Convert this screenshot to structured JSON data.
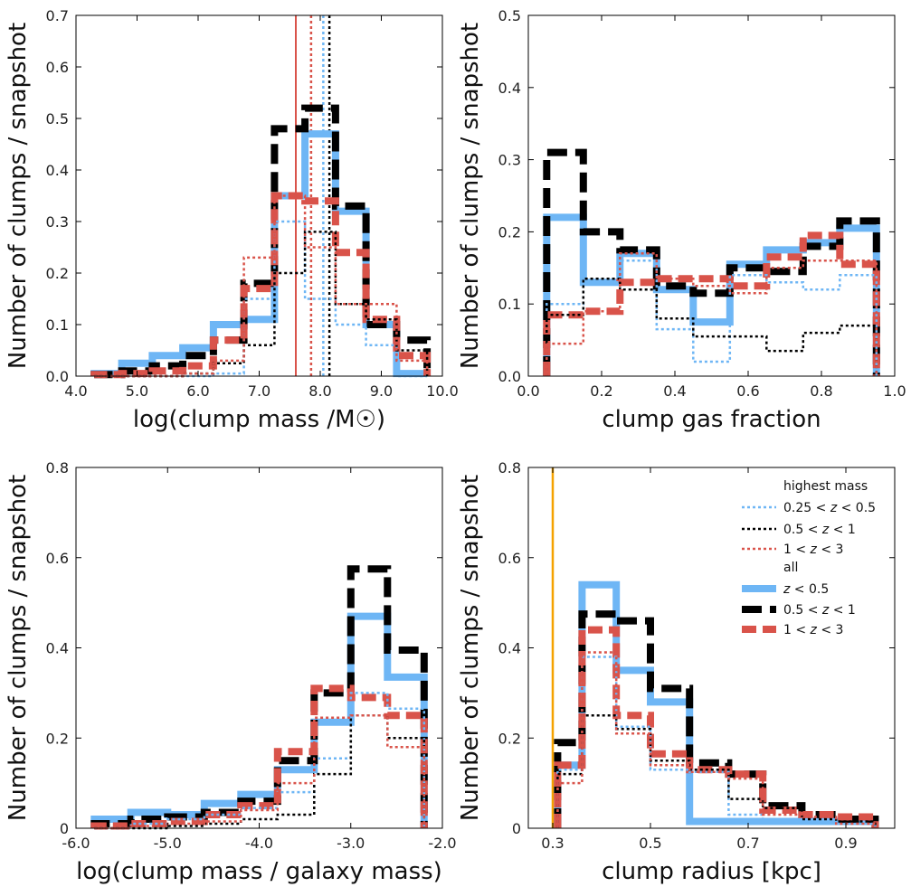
{
  "colors": {
    "blue": "#6EB6F5",
    "black": "#000000",
    "red": "#D9534A",
    "orange": "#F5A200"
  },
  "legend": {
    "header_highest": "highest mass",
    "header_all": "all",
    "entries": [
      {
        "style": "hm_blue",
        "label_pre": "0.25 < ",
        "label_var": "z",
        "label_post": " < 0.5"
      },
      {
        "style": "hm_black",
        "label_pre": "0.5 < ",
        "label_var": "z",
        "label_post": " < 1"
      },
      {
        "style": "hm_red",
        "label_pre": "1 < ",
        "label_var": "z",
        "label_post": " < 3"
      },
      {
        "style": "all_blue",
        "label_pre": "",
        "label_var": "z",
        "label_post": " < 0.5"
      },
      {
        "style": "all_black",
        "label_pre": "0.5 < ",
        "label_var": "z",
        "label_post": " < 1"
      },
      {
        "style": "all_red",
        "label_pre": "1 < ",
        "label_var": "z",
        "label_post": " < 3"
      }
    ]
  },
  "chart_data": [
    {
      "type": "histogram",
      "panel": "top-left",
      "xlabel": "log(clump mass /M☉)",
      "ylabel": "Number of clumps / snapshot",
      "xlim": [
        4.0,
        10.0
      ],
      "ylim": [
        0,
        0.7
      ],
      "xticks": [
        4,
        5,
        6,
        7,
        8,
        9,
        10
      ],
      "xtick_labels": [
        "4.0",
        "5.0",
        "6.0",
        "7.0",
        "8.0",
        "9.0",
        "10.0"
      ],
      "yticks": [
        0,
        0.1,
        0.2,
        0.3,
        0.4,
        0.5,
        0.6,
        0.7
      ],
      "ytick_labels": [
        "0.0",
        "0.1",
        "0.2",
        "0.3",
        "0.4",
        "0.5",
        "0.6",
        "0.7"
      ],
      "vlines": [
        {
          "x": 7.6,
          "style": "solid_red"
        },
        {
          "x": 7.85,
          "style": "hm_red"
        },
        {
          "x": 8.05,
          "style": "hm_blue"
        },
        {
          "x": 8.15,
          "style": "hm_black"
        }
      ],
      "series": [
        {
          "style": "all_blue",
          "edges": [
            4.3,
            4.75,
            5.25,
            5.75,
            6.25,
            6.75,
            7.25,
            7.75,
            8.25,
            8.75,
            9.25,
            9.75
          ],
          "values": [
            0.005,
            0.025,
            0.04,
            0.055,
            0.1,
            0.11,
            0.35,
            0.47,
            0.32,
            0.1,
            0.005
          ]
        },
        {
          "style": "all_black",
          "edges": [
            4.3,
            4.75,
            5.25,
            5.75,
            6.25,
            6.75,
            7.25,
            7.75,
            8.25,
            8.75,
            9.25,
            9.75
          ],
          "values": [
            0.003,
            0.01,
            0.02,
            0.04,
            0.07,
            0.18,
            0.48,
            0.52,
            0.33,
            0.1,
            0.07
          ]
        },
        {
          "style": "all_red",
          "edges": [
            4.3,
            4.75,
            5.25,
            5.75,
            6.25,
            6.75,
            7.25,
            7.75,
            8.25,
            8.75,
            9.25,
            9.75
          ],
          "values": [
            0.003,
            0.005,
            0.01,
            0.02,
            0.07,
            0.17,
            0.35,
            0.34,
            0.24,
            0.11,
            0.04
          ]
        },
        {
          "style": "hm_blue",
          "edges": [
            4.3,
            4.75,
            5.25,
            5.75,
            6.25,
            6.75,
            7.25,
            7.75,
            8.25,
            8.75,
            9.25,
            9.75
          ],
          "values": [
            0,
            0,
            0,
            0,
            0.005,
            0.15,
            0.3,
            0.15,
            0.1,
            0.06,
            0
          ]
        },
        {
          "style": "hm_black",
          "edges": [
            4.3,
            4.75,
            5.25,
            5.75,
            6.25,
            6.75,
            7.25,
            7.75,
            8.25,
            8.75,
            9.25,
            9.75
          ],
          "values": [
            0,
            0,
            0,
            0.005,
            0.025,
            0.06,
            0.2,
            0.28,
            0.14,
            0.11,
            0.05
          ]
        },
        {
          "style": "hm_red",
          "edges": [
            4.3,
            4.75,
            5.25,
            5.75,
            6.25,
            6.75,
            7.25,
            7.75,
            8.25,
            8.75,
            9.25,
            9.75
          ],
          "values": [
            0,
            0,
            0,
            0.005,
            0.03,
            0.23,
            0.35,
            0.25,
            0.14,
            0.14,
            0.03
          ]
        }
      ]
    },
    {
      "type": "histogram",
      "panel": "top-right",
      "xlabel": "clump gas fraction",
      "ylabel": "Number of clumps / snapshot",
      "xlim": [
        0.0,
        1.0
      ],
      "ylim": [
        0,
        0.5
      ],
      "xticks": [
        0,
        0.2,
        0.4,
        0.6,
        0.8,
        1.0
      ],
      "xtick_labels": [
        "0.0",
        "0.2",
        "0.4",
        "0.6",
        "0.8",
        "1.0"
      ],
      "yticks": [
        0,
        0.1,
        0.2,
        0.3,
        0.4,
        0.5
      ],
      "ytick_labels": [
        "0.0",
        "0.1",
        "0.2",
        "0.3",
        "0.4",
        "0.5"
      ],
      "vlines": [],
      "series": [
        {
          "style": "all_blue",
          "edges": [
            0.05,
            0.15,
            0.25,
            0.35,
            0.45,
            0.55,
            0.65,
            0.75,
            0.85,
            0.95
          ],
          "values": [
            0.22,
            0.13,
            0.17,
            0.12,
            0.075,
            0.155,
            0.175,
            0.185,
            0.205
          ]
        },
        {
          "style": "all_black",
          "edges": [
            0.05,
            0.15,
            0.25,
            0.35,
            0.45,
            0.55,
            0.65,
            0.75,
            0.85,
            0.95
          ],
          "values": [
            0.31,
            0.2,
            0.175,
            0.125,
            0.115,
            0.15,
            0.145,
            0.18,
            0.215
          ]
        },
        {
          "style": "all_red",
          "edges": [
            0.05,
            0.15,
            0.25,
            0.35,
            0.45,
            0.55,
            0.65,
            0.75,
            0.85,
            0.95
          ],
          "values": [
            0.085,
            0.09,
            0.13,
            0.135,
            0.135,
            0.125,
            0.165,
            0.195,
            0.155
          ]
        },
        {
          "style": "hm_blue",
          "edges": [
            0.05,
            0.15,
            0.25,
            0.35,
            0.45,
            0.55,
            0.65,
            0.75,
            0.85,
            0.95
          ],
          "values": [
            0.1,
            0.13,
            0.16,
            0.065,
            0.02,
            0.14,
            0.13,
            0.12,
            0.14
          ]
        },
        {
          "style": "hm_black",
          "edges": [
            0.05,
            0.15,
            0.25,
            0.35,
            0.45,
            0.55,
            0.65,
            0.75,
            0.85,
            0.95
          ],
          "values": [
            0.085,
            0.135,
            0.12,
            0.08,
            0.055,
            0.055,
            0.035,
            0.06,
            0.07
          ]
        },
        {
          "style": "hm_red",
          "edges": [
            0.05,
            0.15,
            0.25,
            0.35,
            0.45,
            0.55,
            0.65,
            0.75,
            0.85,
            0.95
          ],
          "values": [
            0.045,
            0.09,
            0.17,
            0.135,
            0.125,
            0.115,
            0.15,
            0.16,
            0.16
          ]
        }
      ]
    },
    {
      "type": "histogram",
      "panel": "bottom-left",
      "xlabel": "log(clump mass / galaxy mass)",
      "ylabel": "Number of clumps / snapshot",
      "xlim": [
        -6.0,
        -2.0
      ],
      "ylim": [
        0,
        0.8
      ],
      "xticks": [
        -6,
        -5,
        -4,
        -3,
        -2
      ],
      "xtick_labels": [
        "-6.0",
        "-5.0",
        "-4.0",
        "-3.0",
        "-2.0"
      ],
      "yticks": [
        0,
        0.2,
        0.4,
        0.6,
        0.8
      ],
      "ytick_labels": [
        "0",
        "0.2",
        "0.4",
        "0.6",
        "0.8"
      ],
      "vlines": [],
      "series": [
        {
          "style": "all_blue",
          "edges": [
            -5.8,
            -5.4,
            -5.0,
            -4.6,
            -4.2,
            -3.8,
            -3.4,
            -3.0,
            -2.6,
            -2.2
          ],
          "values": [
            0.02,
            0.035,
            0.03,
            0.055,
            0.075,
            0.13,
            0.235,
            0.47,
            0.335
          ]
        },
        {
          "style": "all_black",
          "edges": [
            -5.8,
            -5.4,
            -5.0,
            -4.6,
            -4.2,
            -3.8,
            -3.4,
            -3.0,
            -2.6,
            -2.2
          ],
          "values": [
            0.01,
            0.02,
            0.025,
            0.035,
            0.06,
            0.15,
            0.3,
            0.575,
            0.395
          ]
        },
        {
          "style": "all_red",
          "edges": [
            -5.8,
            -5.4,
            -5.0,
            -4.6,
            -4.2,
            -3.8,
            -3.4,
            -3.0,
            -2.6,
            -2.2
          ],
          "values": [
            0.005,
            0.01,
            0.015,
            0.03,
            0.05,
            0.17,
            0.31,
            0.29,
            0.25
          ]
        },
        {
          "style": "hm_blue",
          "edges": [
            -5.8,
            -5.4,
            -5.0,
            -4.6,
            -4.2,
            -3.8,
            -3.4,
            -3.0,
            -2.6,
            -2.2
          ],
          "values": [
            0,
            0.01,
            0.02,
            0.03,
            0.045,
            0.08,
            0.155,
            0.3,
            0.265
          ]
        },
        {
          "style": "hm_black",
          "edges": [
            -5.8,
            -5.4,
            -5.0,
            -4.6,
            -4.2,
            -3.8,
            -3.4,
            -3.0,
            -2.6,
            -2.2
          ],
          "values": [
            0,
            0,
            0.005,
            0.01,
            0.02,
            0.03,
            0.12,
            0.25,
            0.2
          ]
        },
        {
          "style": "hm_red",
          "edges": [
            -5.8,
            -5.4,
            -5.0,
            -4.6,
            -4.2,
            -3.8,
            -3.4,
            -3.0,
            -2.6,
            -2.2
          ],
          "values": [
            0,
            0.005,
            0.01,
            0.015,
            0.04,
            0.1,
            0.245,
            0.25,
            0.18
          ]
        }
      ]
    },
    {
      "type": "histogram",
      "panel": "bottom-right",
      "xlabel": "clump radius [kpc]",
      "ylabel": "Number of clumps / snapshot",
      "xlim": [
        0.25,
        1.0
      ],
      "ylim": [
        0,
        0.8
      ],
      "xticks": [
        0.3,
        0.5,
        0.7,
        0.9
      ],
      "xtick_labels": [
        "0.3",
        "0.5",
        "0.7",
        "0.9"
      ],
      "yticks": [
        0,
        0.2,
        0.4,
        0.6,
        0.8
      ],
      "ytick_labels": [
        "0",
        "0.2",
        "0.4",
        "0.6",
        "0.8"
      ],
      "vlines": [
        {
          "x": 0.3,
          "style": "solid_orange"
        }
      ],
      "series": [
        {
          "style": "all_blue",
          "edges": [
            0.31,
            0.36,
            0.43,
            0.5,
            0.58,
            0.66,
            0.73,
            0.81,
            0.88,
            0.96
          ],
          "values": [
            0.14,
            0.54,
            0.35,
            0.28,
            0.015,
            0.015,
            0.015,
            0.015,
            0.015
          ]
        },
        {
          "style": "all_black",
          "edges": [
            0.31,
            0.36,
            0.43,
            0.5,
            0.58,
            0.66,
            0.73,
            0.81,
            0.88,
            0.96
          ],
          "values": [
            0.19,
            0.475,
            0.46,
            0.31,
            0.145,
            0.12,
            0.05,
            0.03,
            0.02
          ]
        },
        {
          "style": "all_red",
          "edges": [
            0.31,
            0.36,
            0.43,
            0.5,
            0.58,
            0.66,
            0.73,
            0.81,
            0.88,
            0.96
          ],
          "values": [
            0.14,
            0.44,
            0.25,
            0.165,
            0.13,
            0.12,
            0.04,
            0.03,
            0.025
          ]
        },
        {
          "style": "hm_blue",
          "edges": [
            0.31,
            0.36,
            0.43,
            0.5,
            0.58,
            0.66,
            0.73,
            0.81,
            0.88,
            0.96
          ],
          "values": [
            0.13,
            0.38,
            0.225,
            0.13,
            0.125,
            0.03,
            0.02,
            0.02,
            0.01
          ]
        },
        {
          "style": "hm_black",
          "edges": [
            0.31,
            0.36,
            0.43,
            0.5,
            0.58,
            0.66,
            0.73,
            0.81,
            0.88,
            0.96
          ],
          "values": [
            0.12,
            0.25,
            0.22,
            0.15,
            0.13,
            0.065,
            0.045,
            0.02,
            0.015
          ]
        },
        {
          "style": "hm_red",
          "edges": [
            0.31,
            0.36,
            0.43,
            0.5,
            0.58,
            0.66,
            0.73,
            0.81,
            0.88,
            0.96
          ],
          "values": [
            0.1,
            0.39,
            0.21,
            0.14,
            0.125,
            0.11,
            0.03,
            0.025,
            0.01
          ]
        }
      ]
    }
  ]
}
